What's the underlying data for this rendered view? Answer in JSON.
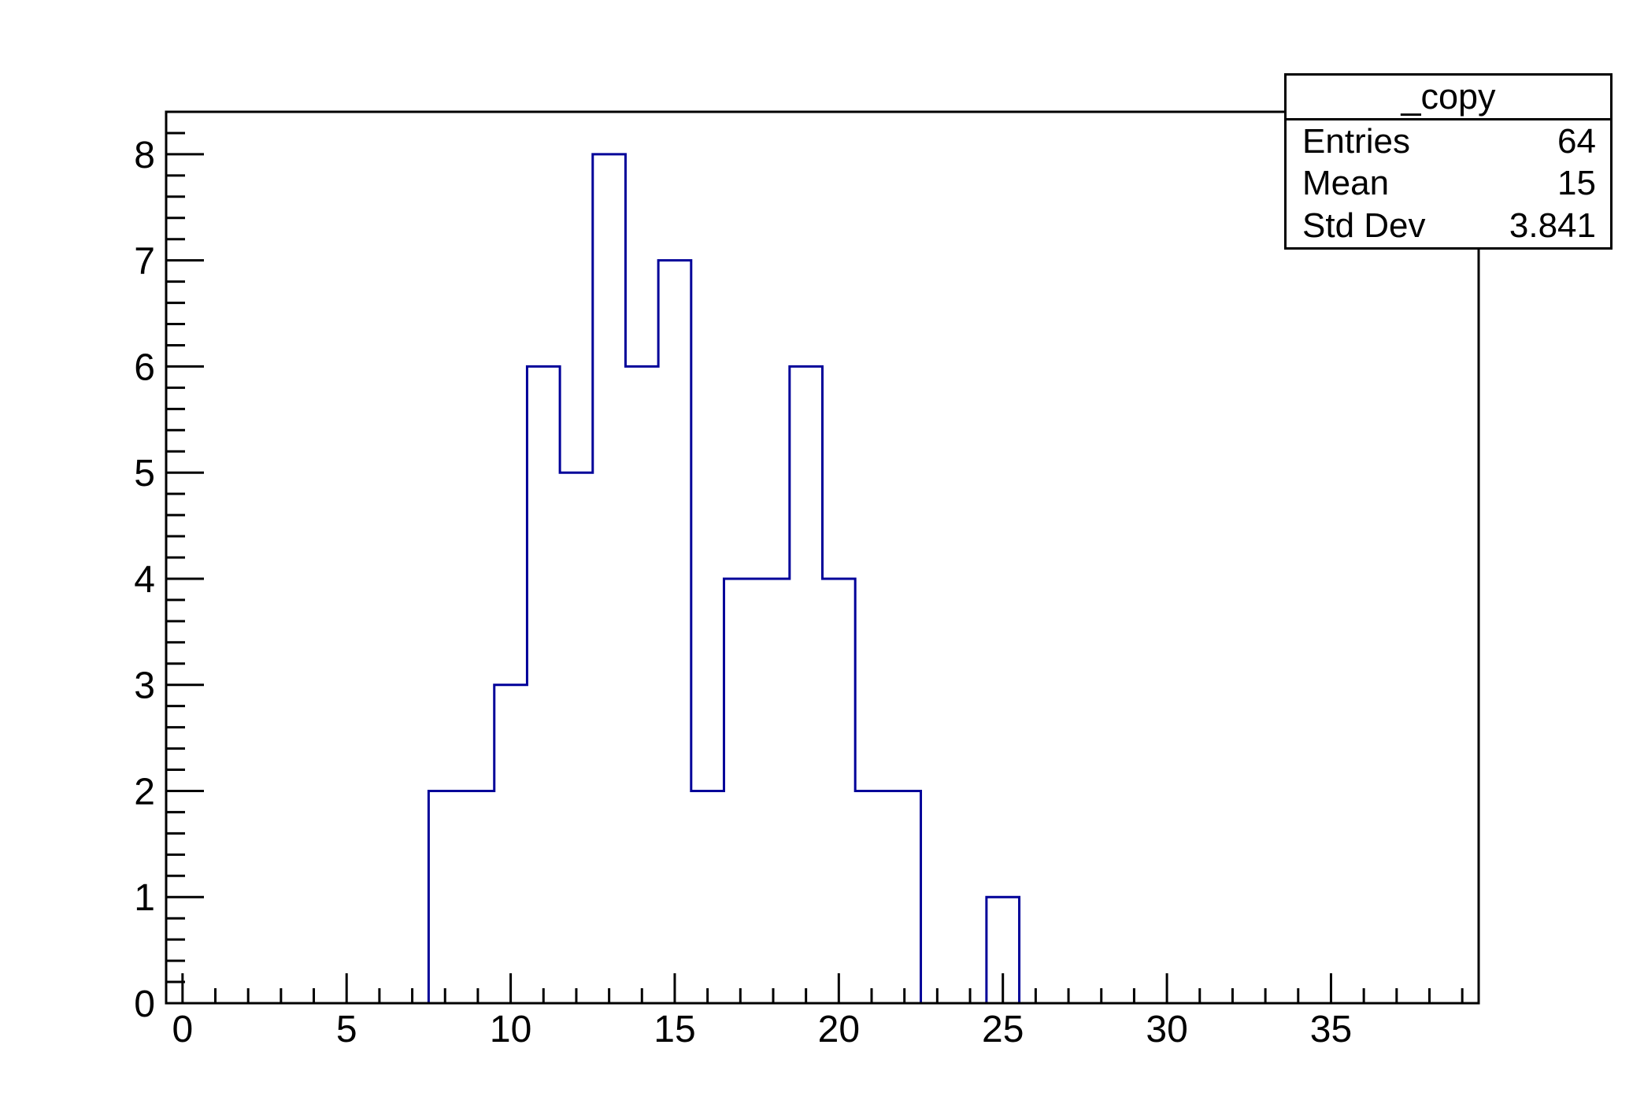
{
  "stats_box": {
    "title": "_copy",
    "rows": [
      {
        "label": "Entries",
        "value": "64"
      },
      {
        "label": "Mean",
        "value": "15"
      },
      {
        "label": "Std Dev",
        "value": "3.841"
      }
    ]
  },
  "chart_data": {
    "type": "bar",
    "subtype": "step-histogram",
    "title": "_copy",
    "xlabel": "",
    "ylabel": "",
    "x_range": [
      -0.5,
      39.5
    ],
    "y_range": [
      0,
      8.4
    ],
    "bin_width": 1,
    "first_bin_center": 0,
    "counts": [
      0,
      0,
      0,
      0,
      0,
      0,
      0,
      0,
      2,
      2,
      3,
      6,
      5,
      8,
      6,
      7,
      2,
      4,
      4,
      6,
      4,
      2,
      2,
      0,
      0,
      1,
      0,
      0,
      0,
      0,
      0,
      0,
      0,
      0,
      0,
      0,
      0,
      0,
      0,
      0
    ],
    "x_major_ticks": [
      0,
      5,
      10,
      15,
      20,
      25,
      30,
      35
    ],
    "x_minor_step": 1,
    "y_major_ticks": [
      0,
      1,
      2,
      3,
      4,
      5,
      6,
      7,
      8
    ],
    "y_minor_step": 0.2,
    "entries": 64,
    "mean": 15,
    "std_dev": 3.841,
    "line_color": "#000099",
    "axis_color": "#000000",
    "background_color": "#ffffff",
    "grid": false,
    "legend_position": "top-right"
  }
}
